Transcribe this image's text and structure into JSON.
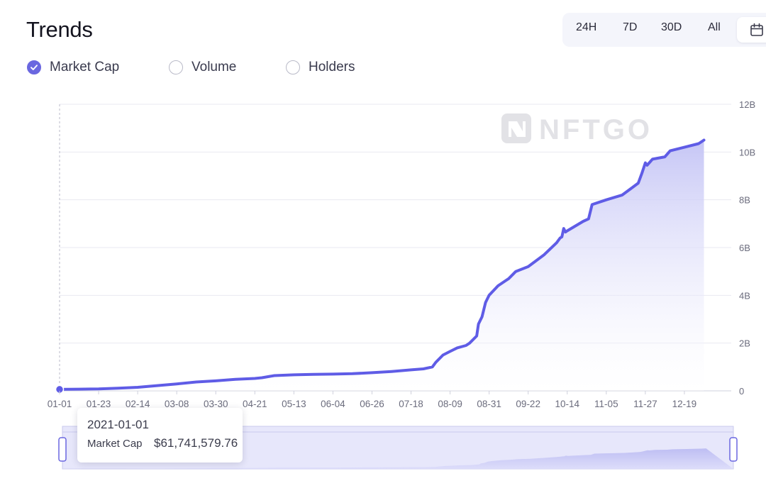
{
  "page": {
    "title": "Trends"
  },
  "range_selector": {
    "options": [
      "24H",
      "7D",
      "30D",
      "All"
    ],
    "calendar_icon": "calendar-icon"
  },
  "toggles": [
    {
      "label": "Market Cap",
      "checked": true
    },
    {
      "label": "Volume",
      "checked": false
    },
    {
      "label": "Holders",
      "checked": false
    }
  ],
  "watermark": {
    "text": "NFTGO"
  },
  "tooltip": {
    "date": "2021-01-01",
    "label": "Market Cap",
    "value": "$61,741,579.76"
  },
  "colors": {
    "accent": "#6a67e0",
    "line": "#5f5ce6",
    "area_top": "#c9c9f6",
    "grid": "#e9e9f1",
    "axis_text": "#6b6c7d"
  },
  "chart_data": {
    "type": "area",
    "title": "",
    "xlabel": "",
    "ylabel": "",
    "ylim": [
      0,
      12000000000
    ],
    "y_ticks": [
      "0",
      "2B",
      "4B",
      "6B",
      "8B",
      "10B",
      "12B"
    ],
    "y_tick_values": [
      0,
      2000000000,
      4000000000,
      6000000000,
      8000000000,
      10000000000,
      12000000000
    ],
    "x_tick_labels": [
      "01-01",
      "01-23",
      "02-14",
      "03-08",
      "03-30",
      "04-21",
      "05-13",
      "06-04",
      "06-26",
      "07-18",
      "08-09",
      "08-31",
      "09-22",
      "10-14",
      "11-05",
      "11-27",
      "12-19"
    ],
    "grid": true,
    "y_axis_position": "right",
    "series": [
      {
        "name": "Market Cap",
        "x": [
          "01-01",
          "01-12",
          "01-23",
          "02-03",
          "02-14",
          "02-25",
          "03-08",
          "03-19",
          "03-30",
          "04-10",
          "04-21",
          "04-25",
          "05-02",
          "05-13",
          "05-24",
          "06-04",
          "06-15",
          "06-26",
          "07-07",
          "07-18",
          "07-25",
          "07-30",
          "08-01",
          "08-05",
          "08-09",
          "08-13",
          "08-18",
          "08-20",
          "08-24",
          "08-25",
          "08-27",
          "08-29",
          "08-31",
          "09-05",
          "09-09",
          "09-11",
          "09-15",
          "09-22",
          "10-01",
          "10-08",
          "10-10",
          "10-11",
          "10-12",
          "10-13",
          "10-14",
          "10-23",
          "10-26",
          "10-28",
          "11-05",
          "11-14",
          "11-23",
          "11-25",
          "11-27",
          "11-28",
          "12-01",
          "12-08",
          "12-11",
          "12-19",
          "12-27",
          "12-30"
        ],
        "values": [
          61741579,
          70000000,
          80000000,
          110000000,
          150000000,
          220000000,
          290000000,
          370000000,
          420000000,
          480000000,
          520000000,
          550000000,
          640000000,
          670000000,
          690000000,
          700000000,
          720000000,
          760000000,
          810000000,
          880000000,
          920000000,
          1000000000,
          1200000000,
          1500000000,
          1650000000,
          1800000000,
          1900000000,
          2000000000,
          2300000000,
          2800000000,
          3100000000,
          3700000000,
          4000000000,
          4400000000,
          4600000000,
          4700000000,
          5000000000,
          5200000000,
          5700000000,
          6200000000,
          6400000000,
          6450000000,
          6800000000,
          6650000000,
          6700000000,
          7100000000,
          7200000000,
          7800000000,
          8000000000,
          8200000000,
          8700000000,
          9100000000,
          9550000000,
          9450000000,
          9700000000,
          9800000000,
          10050000000,
          10200000000,
          10350000000,
          10500000000
        ]
      }
    ]
  }
}
